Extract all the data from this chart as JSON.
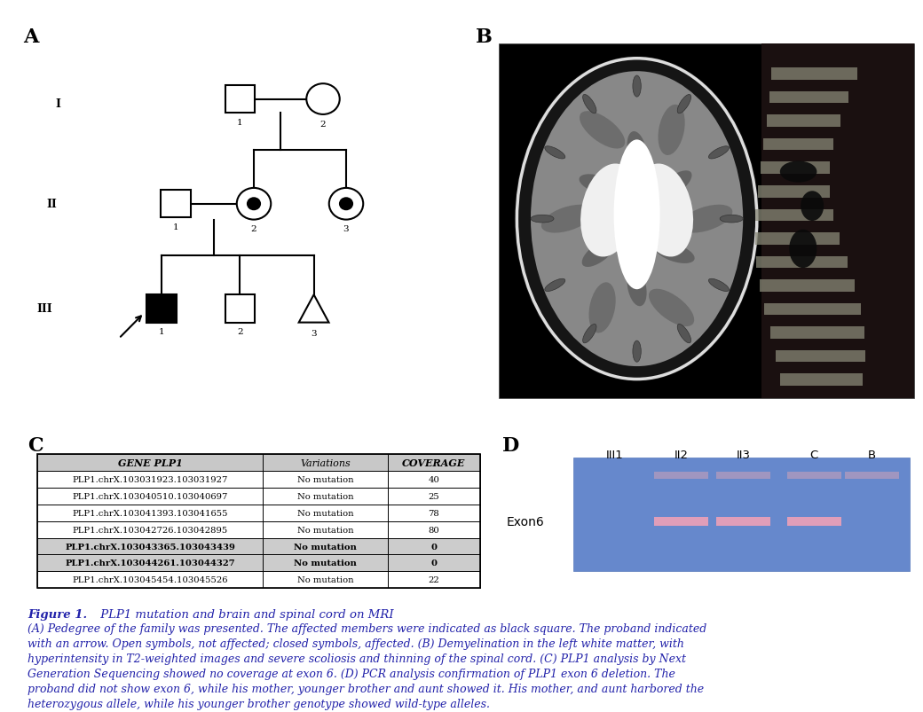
{
  "fig_title": "Figure 1.",
  "fig_title_rest": " PLP1 mutation and brain and spinal cord on MRI",
  "caption_line1": "(A) Pedegree of the family was presented. The affected members were indicated as black square. The proband indicated",
  "caption_line2": "with an arrow. Open symbols, not affected; closed symbols, affected. (B) Demyelination in the left white matter, with",
  "caption_line3": "hyperintensity in T2-weighted images and severe scoliosis and thinning of the spinal cord. (C) PLP1 analysis by Next",
  "caption_line4": "Generation Sequencing showed no coverage at exon 6. (D) PCR analysis confirmation of PLP1 exon 6 deletion. The",
  "caption_line5": "proband did not show exon 6, while his mother, younger brother and aunt showed it. His mother, and aunt harbored the",
  "caption_line6": "heterozygous allele, while his younger brother genotype showed wild-type alleles.",
  "table_headers": [
    "GENE PLP1",
    "Variations",
    "COVERAGE"
  ],
  "table_rows": [
    [
      "PLP1.chrX.103031923.103031927",
      "No mutation",
      "40"
    ],
    [
      "PLP1.chrX.103040510.103040697",
      "No mutation",
      "25"
    ],
    [
      "PLP1.chrX.103041393.103041655",
      "No mutation",
      "78"
    ],
    [
      "PLP1.chrX.103042726.103042895",
      "No mutation",
      "80"
    ],
    [
      "PLP1.chrX.103043365.103043439",
      "No mutation",
      "0"
    ],
    [
      "PLP1.chrX.103044261.103044327",
      "No mutation",
      "0"
    ],
    [
      "PLP1.chrX.103045454.103045526",
      "No mutation",
      "22"
    ]
  ],
  "highlighted_rows": [
    4,
    5
  ],
  "gel_labels": [
    "III1",
    "II2",
    "II3",
    "C",
    "B"
  ],
  "gel_label_y": "Exon6",
  "gel_bg_color": "#6688cc",
  "gel_upper_band_color": "#c8a0b8",
  "gel_lower_band_color": "#e8a0b8",
  "panel_label_fontsize": 16,
  "gen_label_fontsize": 9,
  "background_color": "#ffffff",
  "caption_color": "#2222aa",
  "caption_fontsize": 9.0,
  "title_fontsize": 9.5
}
